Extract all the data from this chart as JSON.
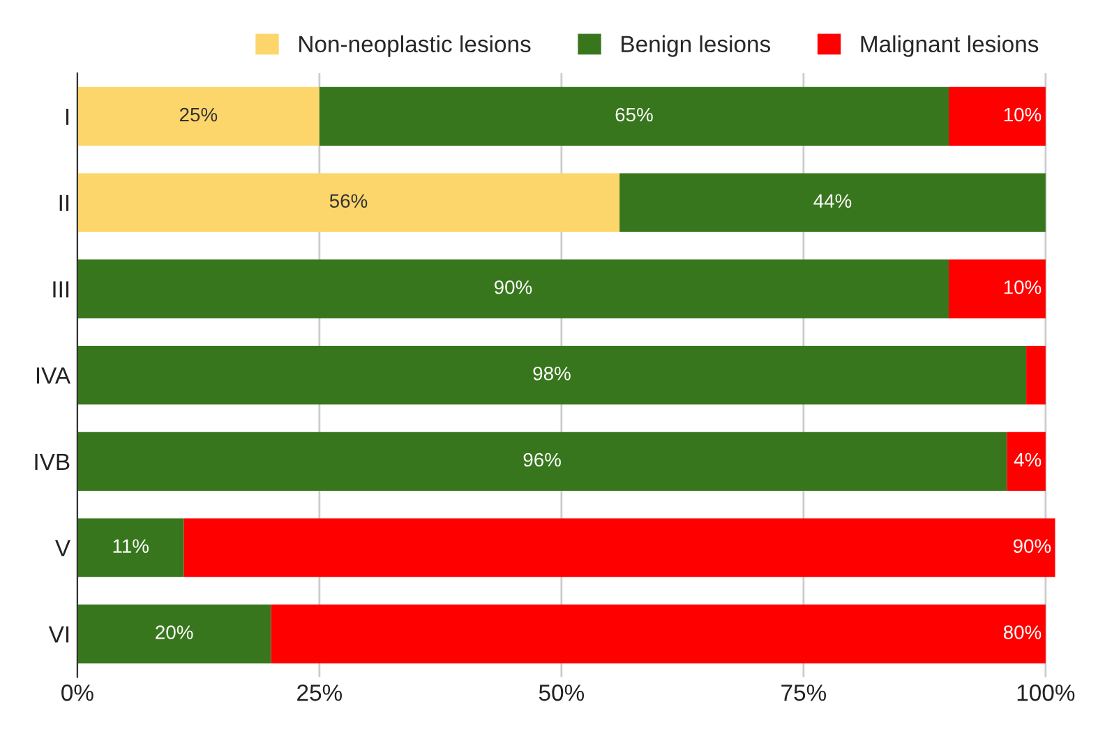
{
  "chart_data": {
    "type": "bar",
    "orientation": "horizontal",
    "stacked": true,
    "categories": [
      "I",
      "II",
      "III",
      "IVA",
      "IVB",
      "V",
      "VI"
    ],
    "series": [
      {
        "name": "Non-neoplastic lesions",
        "color": "#fcd66a",
        "values": [
          25,
          56,
          null,
          null,
          null,
          null,
          null
        ],
        "value_labels": [
          "25%",
          "56%",
          null,
          null,
          null,
          null,
          null
        ]
      },
      {
        "name": "Benign lesions",
        "color": "#38761d",
        "values": [
          65,
          44,
          90,
          98,
          96,
          11,
          20
        ],
        "value_labels": [
          "65%",
          "44%",
          "90%",
          "98%",
          "96%",
          "11%",
          "20%"
        ]
      },
      {
        "name": "Malignant lesions",
        "color": "#ff0000",
        "values": [
          10,
          null,
          10,
          2,
          4,
          90,
          80
        ],
        "value_labels": [
          "10%",
          null,
          "10%",
          null,
          "4%",
          "90%",
          "80%"
        ]
      }
    ],
    "xlim": [
      0,
      101
    ],
    "xticks": [
      {
        "value": 0,
        "label": "0%"
      },
      {
        "value": 25,
        "label": "25%"
      },
      {
        "value": 50,
        "label": "50%"
      },
      {
        "value": 75,
        "label": "75%"
      },
      {
        "value": 100,
        "label": "100%"
      }
    ],
    "grid": "x",
    "legend": "top right"
  }
}
